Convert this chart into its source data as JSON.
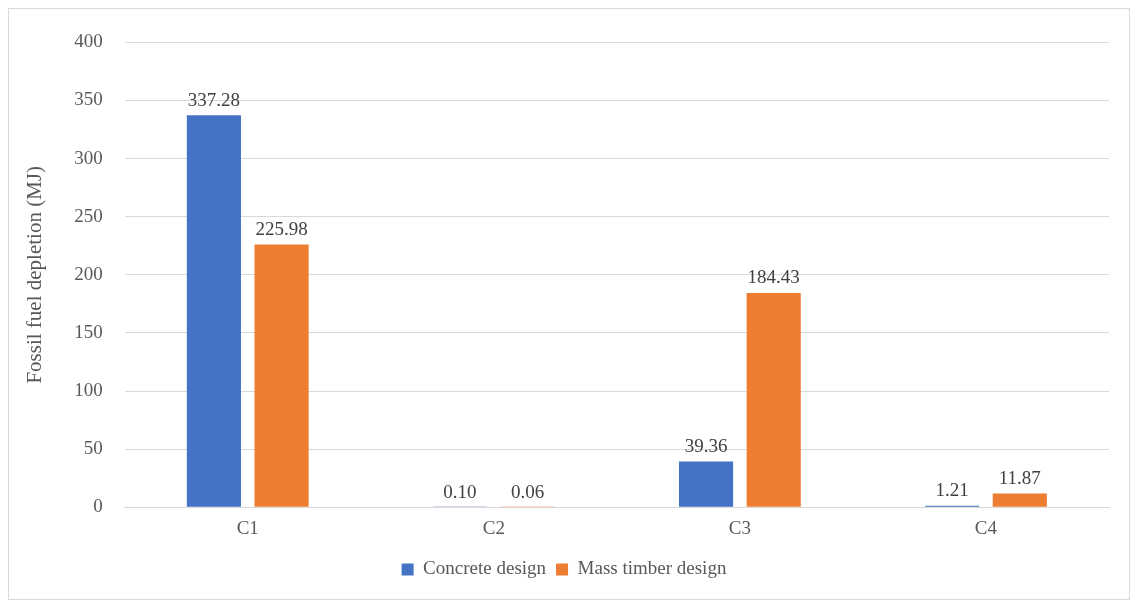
{
  "chart_data": {
    "type": "bar",
    "ylabel": "Fossil fuel depletion (MJ)",
    "categories": [
      "C1",
      "C2",
      "C3",
      "C4"
    ],
    "series": [
      {
        "name": "Concrete design",
        "color": "#4472c4",
        "values": [
          337.28,
          0.1,
          39.36,
          1.21
        ],
        "value_labels": [
          "337.28",
          "0.10",
          "39.36",
          "1.21"
        ]
      },
      {
        "name": "Mass timber design",
        "color": "#ed7d31",
        "values": [
          225.98,
          0.06,
          184.43,
          11.87
        ],
        "value_labels": [
          "225.98",
          "0.06",
          "184.43",
          "11.87"
        ]
      }
    ],
    "ylim": [
      0,
      400
    ],
    "yticks": [
      0,
      50,
      100,
      150,
      200,
      250,
      300,
      350,
      400
    ],
    "grid": "y",
    "legend": "bottom"
  }
}
